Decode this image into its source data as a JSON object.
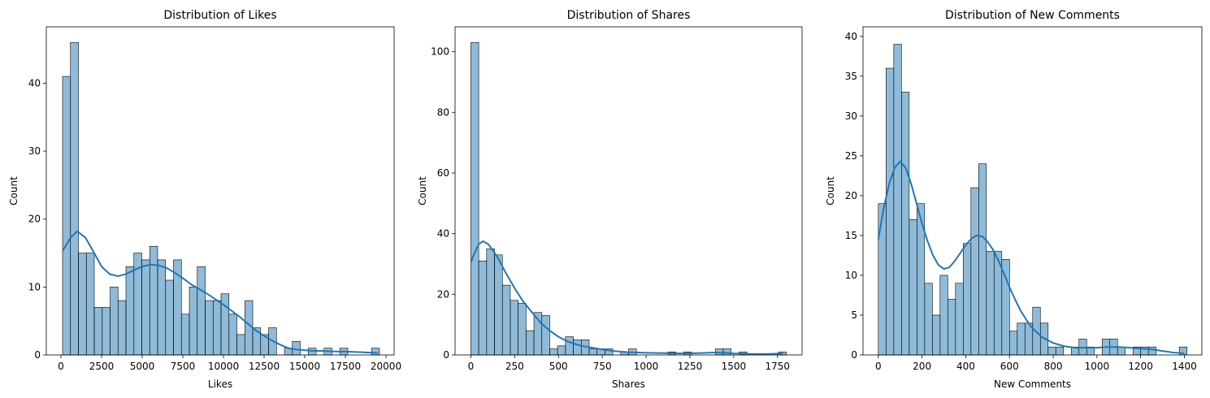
{
  "chart_data": [
    {
      "type": "histogram",
      "title": "Distribution of Likes",
      "xlabel": "Likes",
      "ylabel": "Count",
      "xlim": [
        -900,
        20500
      ],
      "ylim": [
        0,
        48.3
      ],
      "xticks": [
        0,
        2500,
        5000,
        7500,
        10000,
        12500,
        15000,
        17500,
        20000
      ],
      "yticks": [
        0,
        10,
        20,
        30,
        40
      ],
      "bin_start": 100,
      "bin_width": 487.5,
      "counts": [
        41,
        46,
        15,
        15,
        7,
        7,
        10,
        8,
        13,
        15,
        14,
        16,
        14,
        11,
        14,
        6,
        10,
        13,
        8,
        8,
        9,
        6,
        3,
        8,
        4,
        3,
        4,
        0,
        1,
        2,
        0,
        1,
        0,
        1,
        0,
        1,
        0,
        0,
        0,
        1
      ],
      "kde": [
        [
          100,
          15.3
        ],
        [
          600,
          17.3
        ],
        [
          1000,
          18.2
        ],
        [
          1500,
          17.3
        ],
        [
          2000,
          15.2
        ],
        [
          2500,
          13.0
        ],
        [
          3000,
          11.9
        ],
        [
          3500,
          11.6
        ],
        [
          4000,
          11.9
        ],
        [
          4500,
          12.5
        ],
        [
          5000,
          13.0
        ],
        [
          5500,
          13.3
        ],
        [
          6000,
          13.2
        ],
        [
          6500,
          12.8
        ],
        [
          7000,
          12.1
        ],
        [
          7500,
          11.3
        ],
        [
          8000,
          10.4
        ],
        [
          8500,
          9.7
        ],
        [
          9000,
          9.0
        ],
        [
          9500,
          8.2
        ],
        [
          10000,
          7.4
        ],
        [
          10500,
          6.5
        ],
        [
          11000,
          5.6
        ],
        [
          11500,
          4.6
        ],
        [
          12000,
          3.6
        ],
        [
          12500,
          2.8
        ],
        [
          13000,
          2.1
        ],
        [
          13500,
          1.5
        ],
        [
          14000,
          1.0
        ],
        [
          14500,
          0.8
        ],
        [
          15000,
          0.7
        ],
        [
          15500,
          0.6
        ],
        [
          16000,
          0.6
        ],
        [
          16500,
          0.55
        ],
        [
          17000,
          0.5
        ],
        [
          17500,
          0.5
        ],
        [
          18000,
          0.45
        ],
        [
          18500,
          0.4
        ],
        [
          19000,
          0.35
        ],
        [
          19500,
          0.3
        ]
      ]
    },
    {
      "type": "histogram",
      "title": "Distribution of Shares",
      "xlabel": "Shares",
      "ylabel": "Count",
      "xlim": [
        -90,
        1890
      ],
      "ylim": [
        0,
        108.2
      ],
      "xticks": [
        0,
        250,
        500,
        750,
        1000,
        1250,
        1500,
        1750
      ],
      "yticks": [
        0,
        20,
        40,
        60,
        80,
        100
      ],
      "bin_start": 0,
      "bin_width": 45,
      "counts": [
        103,
        31,
        35,
        33,
        23,
        18,
        17,
        8,
        14,
        13,
        2,
        3,
        6,
        5,
        5,
        2,
        2,
        2,
        0,
        1,
        2,
        0,
        0,
        0,
        0,
        1,
        0,
        1,
        0,
        0,
        0,
        2,
        2,
        0,
        1,
        0,
        0,
        0,
        0,
        1
      ],
      "kde": [
        [
          0,
          30.5
        ],
        [
          20,
          33.5
        ],
        [
          45,
          36.5
        ],
        [
          70,
          37.5
        ],
        [
          100,
          36.5
        ],
        [
          150,
          32.5
        ],
        [
          200,
          27.0
        ],
        [
          250,
          22.0
        ],
        [
          300,
          17.5
        ],
        [
          350,
          14.0
        ],
        [
          400,
          10.5
        ],
        [
          450,
          8.0
        ],
        [
          500,
          6.0
        ],
        [
          550,
          4.5
        ],
        [
          600,
          3.5
        ],
        [
          650,
          2.8
        ],
        [
          700,
          2.3
        ],
        [
          750,
          1.8
        ],
        [
          800,
          1.4
        ],
        [
          850,
          1.1
        ],
        [
          900,
          0.9
        ],
        [
          1000,
          0.7
        ],
        [
          1100,
          0.6
        ],
        [
          1200,
          0.5
        ],
        [
          1300,
          0.6
        ],
        [
          1400,
          0.8
        ],
        [
          1450,
          0.7
        ],
        [
          1500,
          0.5
        ],
        [
          1600,
          0.3
        ],
        [
          1700,
          0.3
        ],
        [
          1780,
          0.5
        ]
      ]
    },
    {
      "type": "histogram",
      "title": "Distribution of New Comments",
      "xlabel": "New Comments",
      "ylabel": "Count",
      "xlim": [
        -70,
        1480
      ],
      "ylim": [
        0,
        41.2
      ],
      "xticks": [
        0,
        200,
        400,
        600,
        800,
        1000,
        1200,
        1400
      ],
      "yticks": [
        0,
        5,
        10,
        15,
        20,
        25,
        30,
        35,
        40
      ],
      "bin_start": 0,
      "bin_width": 35.3,
      "counts": [
        19,
        36,
        39,
        33,
        17,
        19,
        9,
        5,
        10,
        7,
        9,
        14,
        21,
        24,
        13,
        13,
        12,
        3,
        4,
        4,
        6,
        4,
        1,
        1,
        0,
        1,
        2,
        1,
        0,
        2,
        2,
        1,
        0,
        1,
        1,
        1,
        0,
        0,
        0,
        1
      ],
      "kde": [
        [
          0,
          14.5
        ],
        [
          25,
          18.5
        ],
        [
          50,
          21.5
        ],
        [
          75,
          23.5
        ],
        [
          100,
          24.3
        ],
        [
          125,
          23.5
        ],
        [
          150,
          21.5
        ],
        [
          175,
          19.0
        ],
        [
          200,
          16.5
        ],
        [
          225,
          14.3
        ],
        [
          250,
          12.5
        ],
        [
          275,
          11.3
        ],
        [
          300,
          10.8
        ],
        [
          325,
          11.0
        ],
        [
          350,
          11.8
        ],
        [
          375,
          12.8
        ],
        [
          400,
          13.8
        ],
        [
          425,
          14.6
        ],
        [
          450,
          15.0
        ],
        [
          475,
          14.9
        ],
        [
          500,
          14.2
        ],
        [
          525,
          13.2
        ],
        [
          550,
          11.8
        ],
        [
          575,
          10.2
        ],
        [
          600,
          8.5
        ],
        [
          625,
          7.0
        ],
        [
          650,
          5.6
        ],
        [
          675,
          4.5
        ],
        [
          700,
          3.5
        ],
        [
          750,
          2.2
        ],
        [
          800,
          1.5
        ],
        [
          850,
          1.1
        ],
        [
          900,
          0.9
        ],
        [
          950,
          0.9
        ],
        [
          1000,
          0.9
        ],
        [
          1050,
          1.0
        ],
        [
          1100,
          1.0
        ],
        [
          1150,
          0.9
        ],
        [
          1200,
          0.8
        ],
        [
          1250,
          0.7
        ],
        [
          1300,
          0.5
        ],
        [
          1350,
          0.3
        ],
        [
          1400,
          0.2
        ]
      ]
    }
  ]
}
